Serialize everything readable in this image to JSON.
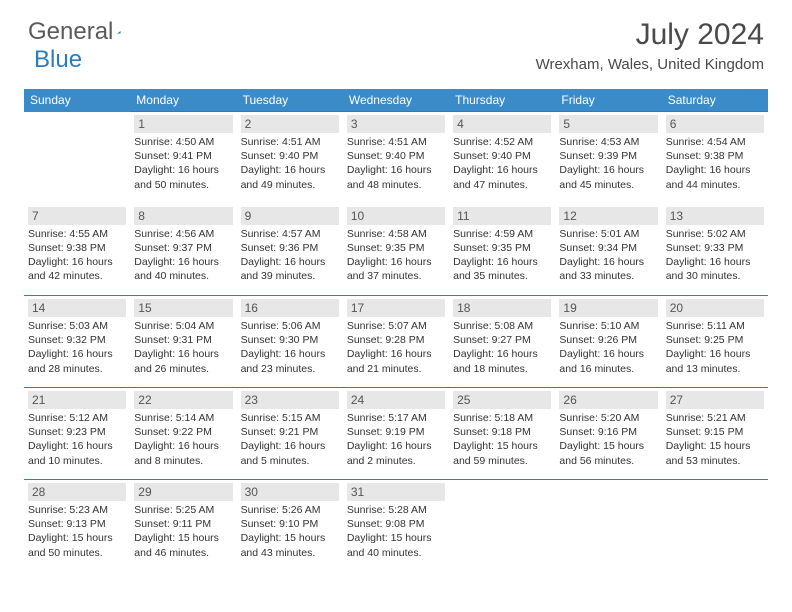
{
  "logo": {
    "word1": "General",
    "word2": "Blue"
  },
  "title": "July 2024",
  "location": "Wrexham, Wales, United Kingdom",
  "colors": {
    "header_bg": "#3b8bc9",
    "border": "#2b7bbf",
    "daynum_bg": "#e7e7e7",
    "logo_gray": "#5a5a5a",
    "logo_blue": "#2b7bbf"
  },
  "day_headers": [
    "Sunday",
    "Monday",
    "Tuesday",
    "Wednesday",
    "Thursday",
    "Friday",
    "Saturday"
  ],
  "weeks": [
    [
      null,
      {
        "n": "1",
        "sunrise": "4:50 AM",
        "sunset": "9:41 PM",
        "daylight": "16 hours and 50 minutes."
      },
      {
        "n": "2",
        "sunrise": "4:51 AM",
        "sunset": "9:40 PM",
        "daylight": "16 hours and 49 minutes."
      },
      {
        "n": "3",
        "sunrise": "4:51 AM",
        "sunset": "9:40 PM",
        "daylight": "16 hours and 48 minutes."
      },
      {
        "n": "4",
        "sunrise": "4:52 AM",
        "sunset": "9:40 PM",
        "daylight": "16 hours and 47 minutes."
      },
      {
        "n": "5",
        "sunrise": "4:53 AM",
        "sunset": "9:39 PM",
        "daylight": "16 hours and 45 minutes."
      },
      {
        "n": "6",
        "sunrise": "4:54 AM",
        "sunset": "9:38 PM",
        "daylight": "16 hours and 44 minutes."
      }
    ],
    [
      {
        "n": "7",
        "sunrise": "4:55 AM",
        "sunset": "9:38 PM",
        "daylight": "16 hours and 42 minutes."
      },
      {
        "n": "8",
        "sunrise": "4:56 AM",
        "sunset": "9:37 PM",
        "daylight": "16 hours and 40 minutes."
      },
      {
        "n": "9",
        "sunrise": "4:57 AM",
        "sunset": "9:36 PM",
        "daylight": "16 hours and 39 minutes."
      },
      {
        "n": "10",
        "sunrise": "4:58 AM",
        "sunset": "9:35 PM",
        "daylight": "16 hours and 37 minutes."
      },
      {
        "n": "11",
        "sunrise": "4:59 AM",
        "sunset": "9:35 PM",
        "daylight": "16 hours and 35 minutes."
      },
      {
        "n": "12",
        "sunrise": "5:01 AM",
        "sunset": "9:34 PM",
        "daylight": "16 hours and 33 minutes."
      },
      {
        "n": "13",
        "sunrise": "5:02 AM",
        "sunset": "9:33 PM",
        "daylight": "16 hours and 30 minutes."
      }
    ],
    [
      {
        "n": "14",
        "sunrise": "5:03 AM",
        "sunset": "9:32 PM",
        "daylight": "16 hours and 28 minutes."
      },
      {
        "n": "15",
        "sunrise": "5:04 AM",
        "sunset": "9:31 PM",
        "daylight": "16 hours and 26 minutes."
      },
      {
        "n": "16",
        "sunrise": "5:06 AM",
        "sunset": "9:30 PM",
        "daylight": "16 hours and 23 minutes."
      },
      {
        "n": "17",
        "sunrise": "5:07 AM",
        "sunset": "9:28 PM",
        "daylight": "16 hours and 21 minutes."
      },
      {
        "n": "18",
        "sunrise": "5:08 AM",
        "sunset": "9:27 PM",
        "daylight": "16 hours and 18 minutes."
      },
      {
        "n": "19",
        "sunrise": "5:10 AM",
        "sunset": "9:26 PM",
        "daylight": "16 hours and 16 minutes."
      },
      {
        "n": "20",
        "sunrise": "5:11 AM",
        "sunset": "9:25 PM",
        "daylight": "16 hours and 13 minutes."
      }
    ],
    [
      {
        "n": "21",
        "sunrise": "5:12 AM",
        "sunset": "9:23 PM",
        "daylight": "16 hours and 10 minutes."
      },
      {
        "n": "22",
        "sunrise": "5:14 AM",
        "sunset": "9:22 PM",
        "daylight": "16 hours and 8 minutes."
      },
      {
        "n": "23",
        "sunrise": "5:15 AM",
        "sunset": "9:21 PM",
        "daylight": "16 hours and 5 minutes."
      },
      {
        "n": "24",
        "sunrise": "5:17 AM",
        "sunset": "9:19 PM",
        "daylight": "16 hours and 2 minutes."
      },
      {
        "n": "25",
        "sunrise": "5:18 AM",
        "sunset": "9:18 PM",
        "daylight": "15 hours and 59 minutes."
      },
      {
        "n": "26",
        "sunrise": "5:20 AM",
        "sunset": "9:16 PM",
        "daylight": "15 hours and 56 minutes."
      },
      {
        "n": "27",
        "sunrise": "5:21 AM",
        "sunset": "9:15 PM",
        "daylight": "15 hours and 53 minutes."
      }
    ],
    [
      {
        "n": "28",
        "sunrise": "5:23 AM",
        "sunset": "9:13 PM",
        "daylight": "15 hours and 50 minutes."
      },
      {
        "n": "29",
        "sunrise": "5:25 AM",
        "sunset": "9:11 PM",
        "daylight": "15 hours and 46 minutes."
      },
      {
        "n": "30",
        "sunrise": "5:26 AM",
        "sunset": "9:10 PM",
        "daylight": "15 hours and 43 minutes."
      },
      {
        "n": "31",
        "sunrise": "5:28 AM",
        "sunset": "9:08 PM",
        "daylight": "15 hours and 40 minutes."
      },
      null,
      null,
      null
    ]
  ],
  "labels": {
    "sunrise_prefix": "Sunrise: ",
    "sunset_prefix": "Sunset: ",
    "daylight_prefix": "Daylight: "
  }
}
